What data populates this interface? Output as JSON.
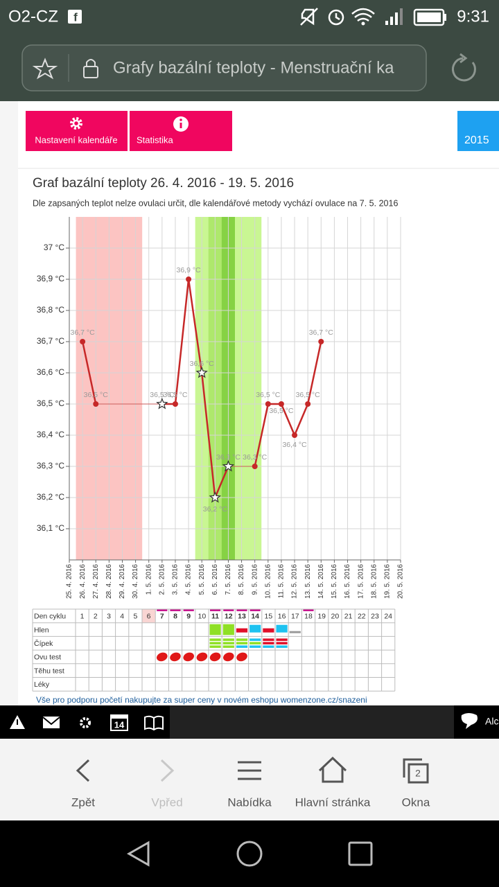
{
  "status_bar": {
    "carrier": "O2-CZ",
    "time": "9:31"
  },
  "address_bar": {
    "page_title": "Grafy bazální teploty - Menstruační ka"
  },
  "buttons": [
    "Nastavení kalendáře",
    "Statistika"
  ],
  "year_tab": "2015",
  "chart_data": {
    "type": "line",
    "title": "Graf bazální teploty 26. 4. 2016 - 19. 5. 2016",
    "subtitle": "Dle zapsaných teplot nelze ovulaci určit, dle kalendářové metody vychází ovulace na 7. 5. 2016",
    "categories": [
      "25. 4. 2016",
      "26. 4. 2016",
      "27. 4. 2016",
      "28. 4. 2016",
      "29. 4. 2016",
      "30. 4. 2016",
      "1. 5. 2016",
      "2. 5. 2016",
      "3. 5. 2016",
      "4. 5. 2016",
      "5. 5. 2016",
      "6. 5. 2016",
      "7. 5. 2016",
      "8. 5. 2016",
      "9. 5. 2016",
      "10. 5. 2016",
      "11. 5. 2016",
      "12. 5. 2016",
      "13. 5. 2016",
      "14. 5. 2016",
      "15. 5. 2016",
      "16. 5. 2016",
      "17. 5. 2016",
      "18. 5. 2016",
      "19. 5. 2016",
      "20. 5. 2016"
    ],
    "values": [
      null,
      36.7,
      36.5,
      null,
      null,
      null,
      null,
      36.5,
      36.5,
      36.9,
      36.6,
      36.2,
      36.3,
      null,
      36.3,
      36.5,
      36.5,
      36.4,
      36.5,
      36.7,
      null,
      null,
      null,
      null,
      null,
      null
    ],
    "value_labels": [
      null,
      "36,7 °C",
      "36,5 °C",
      null,
      null,
      null,
      null,
      "36,5 °C",
      "36,5 °C",
      "36,9 °C",
      "36,6 °C",
      "36,2 °C",
      "36,3 °C",
      null,
      "36,3 °C",
      "36,5 °C",
      "36,5 °C",
      "36,4 °C",
      "36,5 °C",
      "36,7 °C",
      null,
      null,
      null,
      null,
      null,
      null
    ],
    "markers": [
      null,
      "dot",
      "dot",
      null,
      null,
      null,
      null,
      "star",
      "dot",
      "dot",
      "star",
      "star",
      "star",
      null,
      "dot",
      "dot",
      "dot",
      "dot",
      "dot",
      "dot",
      null,
      null,
      null,
      null,
      null,
      null
    ],
    "color": "#c62828",
    "ylim": [
      36.0,
      37.1
    ],
    "yticks": [
      {
        "value": 36.1,
        "label": "36,1 °C"
      },
      {
        "value": 36.2,
        "label": "36,2 °C"
      },
      {
        "value": 36.3,
        "label": "36,3 °C"
      },
      {
        "value": 36.4,
        "label": "36,4 °C"
      },
      {
        "value": 36.5,
        "label": "36,5 °C"
      },
      {
        "value": 36.6,
        "label": "36,6 °C"
      },
      {
        "value": 36.7,
        "label": "36,7 °C"
      },
      {
        "value": 36.8,
        "label": "36,8 °C"
      },
      {
        "value": 36.9,
        "label": "36,9 °C"
      },
      {
        "value": 37,
        "label": "37 °C"
      }
    ],
    "grid": true,
    "bands": [
      {
        "from": "26. 4. 2016",
        "to": "30. 4. 2016",
        "color": "#fcc4c2"
      },
      {
        "from": "5. 5. 2016",
        "to": "9. 5. 2016",
        "color": "#c9f693"
      },
      {
        "from": "6. 5. 2016",
        "to": "7. 5. 2016",
        "color": "#aee86c"
      },
      {
        "from": "7. 5. 2016",
        "to": "7. 5. 2016",
        "color": "#86d244"
      }
    ]
  },
  "cycle_table": {
    "row_labels": [
      "Den cyklu",
      "Hlen",
      "Čípek",
      "Ovu test",
      "Těhu test",
      "Léky"
    ],
    "days": [
      1,
      2,
      3,
      4,
      5,
      6,
      7,
      8,
      9,
      10,
      11,
      12,
      13,
      14,
      15,
      16,
      17,
      18,
      19,
      20,
      21,
      22,
      23,
      24
    ]
  },
  "promo_link": "Vše pro podporu početí nakupujte za super ceny v novém eshopu womenzone.cz/snazeni",
  "toolbar": {
    "calendar_day": "14",
    "chat_label": "Alc"
  },
  "browser_nav": [
    "Zpět",
    "Vpřed",
    "Nabídka",
    "Hlavní stránka",
    "Okna"
  ],
  "tab_count": 2
}
